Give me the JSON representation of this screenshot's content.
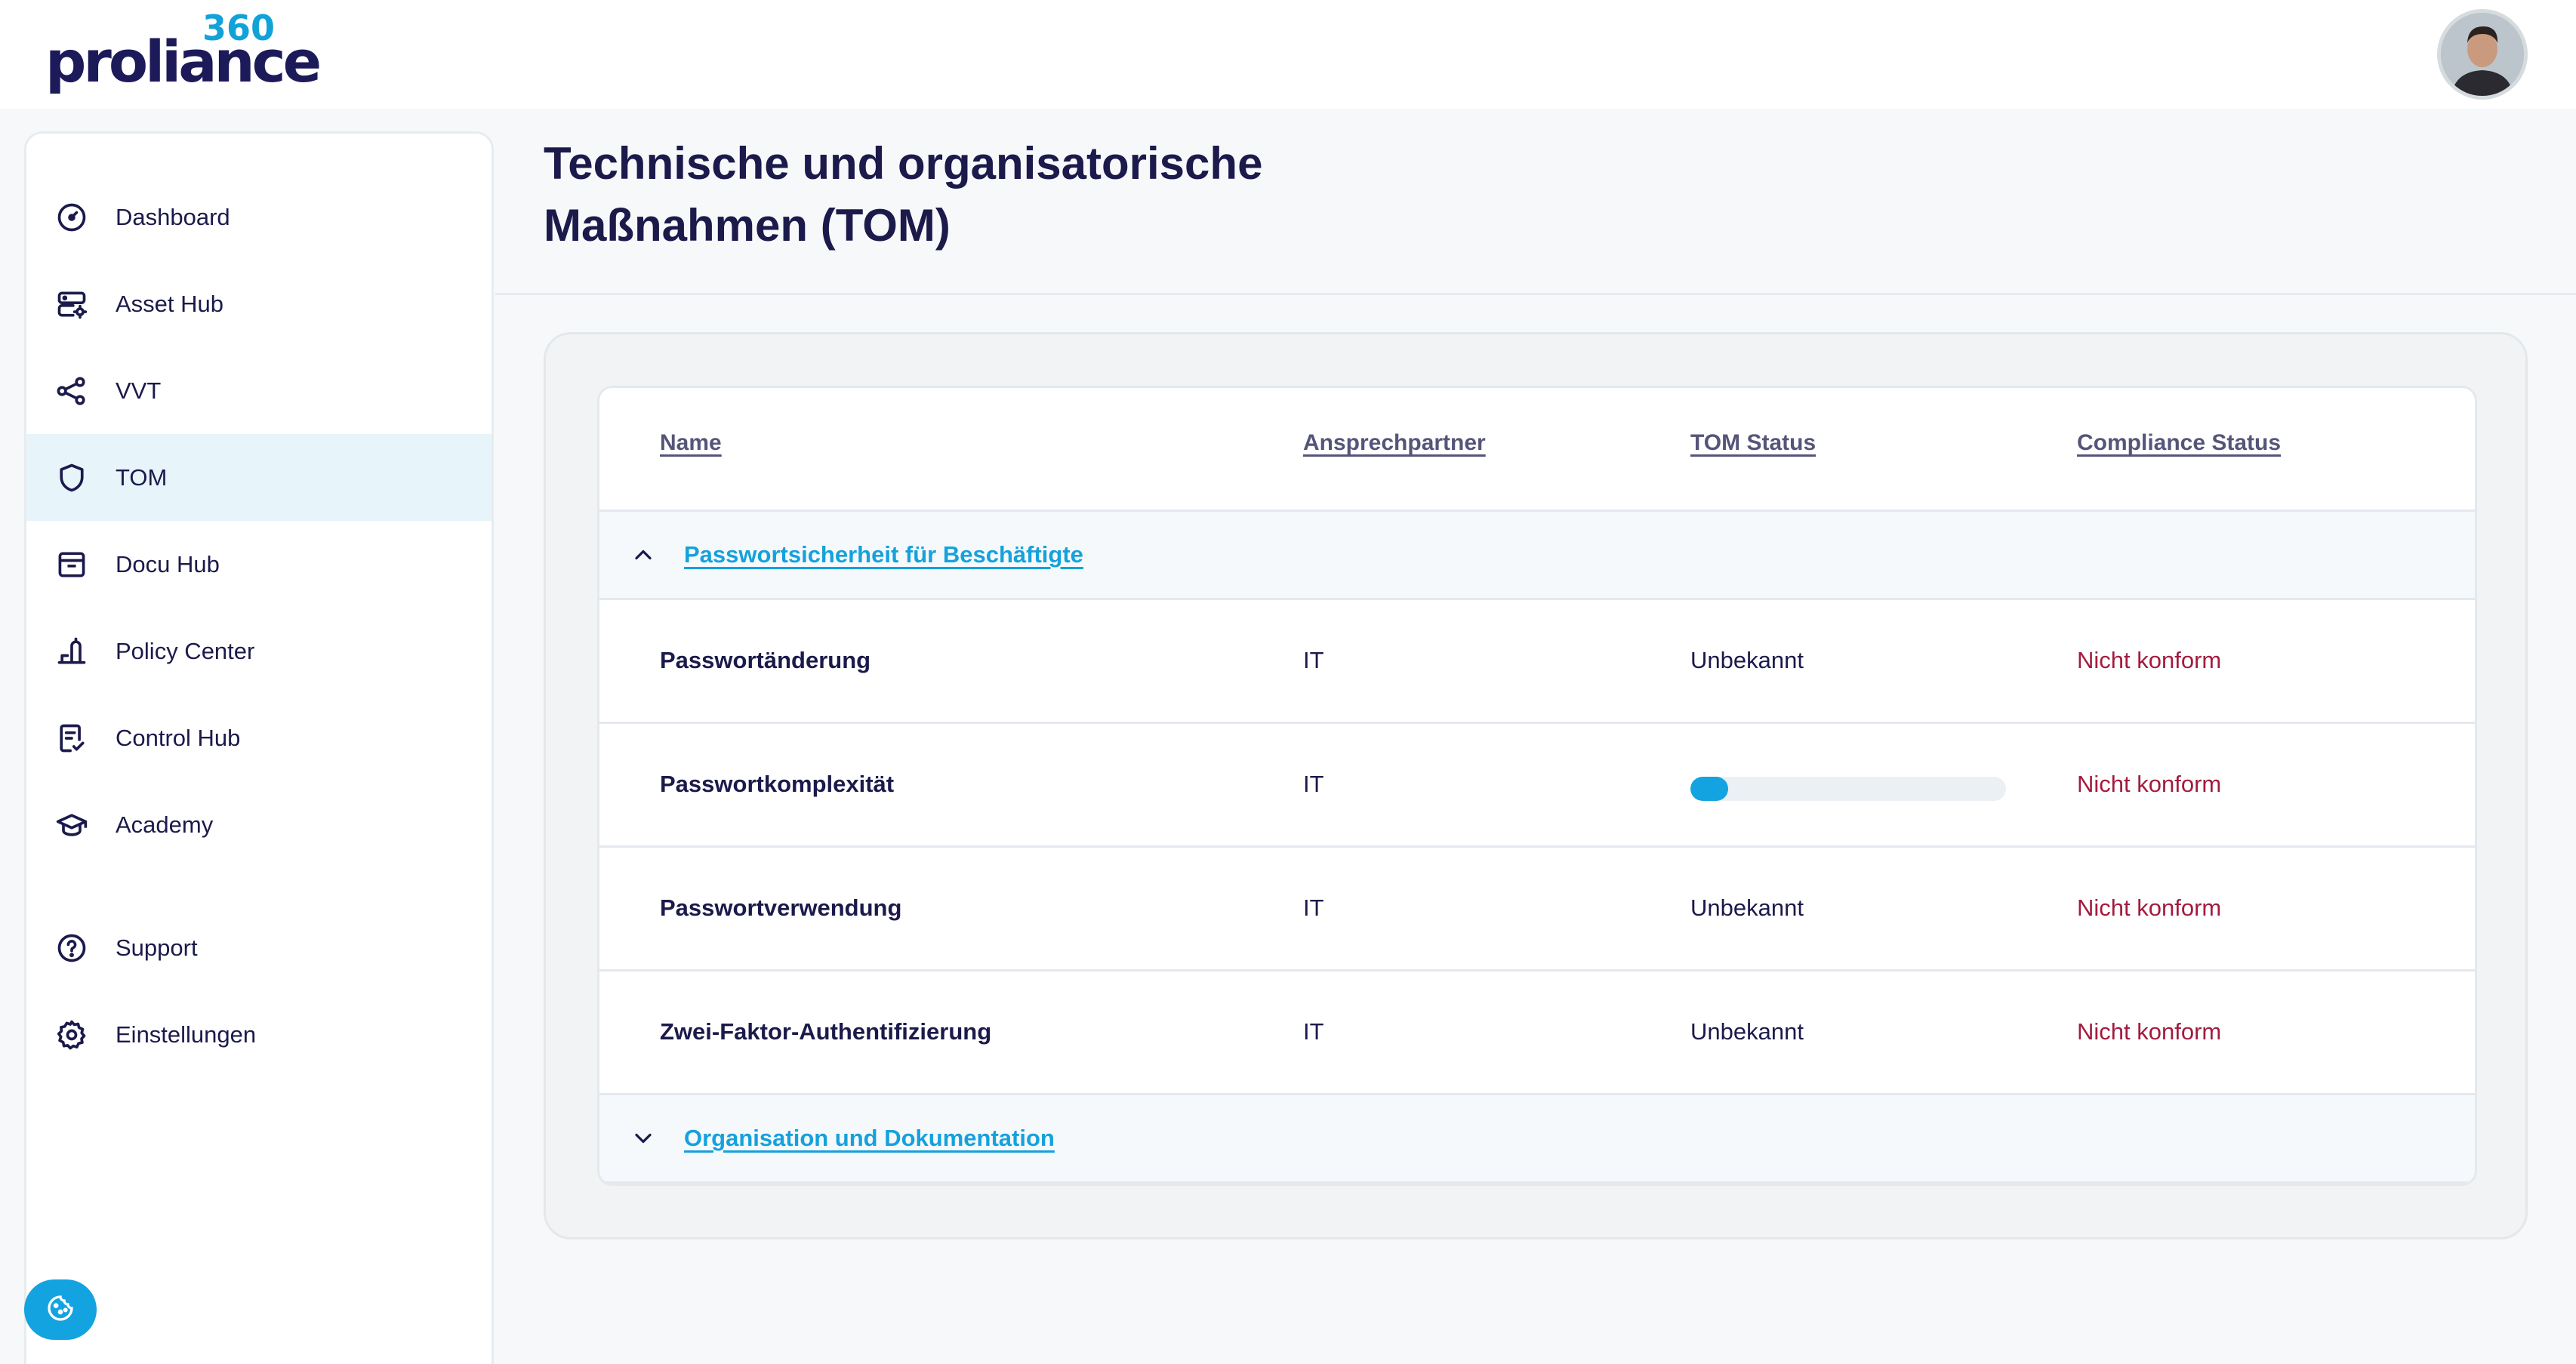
{
  "brand": {
    "name": "proliance",
    "suffix": "360"
  },
  "user": {
    "avatar": "user-avatar"
  },
  "sidebar": {
    "items": [
      {
        "label": "Dashboard",
        "icon": "gauge-icon"
      },
      {
        "label": "Asset Hub",
        "icon": "server-gear-icon"
      },
      {
        "label": "VVT",
        "icon": "share-nodes-icon"
      },
      {
        "label": "TOM",
        "icon": "shield-icon",
        "active": true
      },
      {
        "label": "Docu Hub",
        "icon": "archive-box-icon"
      },
      {
        "label": "Policy Center",
        "icon": "policy-icon"
      },
      {
        "label": "Control Hub",
        "icon": "checklist-icon"
      },
      {
        "label": "Academy",
        "icon": "graduation-cap-icon"
      }
    ],
    "bottom_items": [
      {
        "label": "Support",
        "icon": "question-circle-icon"
      },
      {
        "label": "Einstellungen",
        "icon": "gear-icon"
      }
    ],
    "cookie_button": {
      "icon": "cookie-icon"
    }
  },
  "page": {
    "title_line1": "Technische und organisatorische",
    "title_line2": "Maßnahmen (TOM)"
  },
  "table": {
    "columns": [
      "Name",
      "Ansprechpartner",
      "TOM Status",
      "Compliance Status"
    ],
    "groups": [
      {
        "title": "Passwortsicherheit für Beschäftigte",
        "expanded": true,
        "rows": [
          {
            "name": "Passwortänderung",
            "contact": "IT",
            "tom_status": "Unbekannt",
            "compliance": "Nicht konform"
          },
          {
            "name": "Passwortkomplexität",
            "contact": "IT",
            "tom_status_progress": 0.12,
            "compliance": "Nicht konform"
          },
          {
            "name": "Passwortverwendung",
            "contact": "IT",
            "tom_status": "Unbekannt",
            "compliance": "Nicht konform"
          },
          {
            "name": "Zwei-Faktor-Authentifizierung",
            "contact": "IT",
            "tom_status": "Unbekannt",
            "compliance": "Nicht konform"
          }
        ]
      },
      {
        "title": "Organisation und Dokumentation",
        "expanded": false
      }
    ]
  },
  "colors": {
    "primary": "#1b1a4b",
    "accent": "#13a3e0",
    "link": "#15a1dc",
    "noncompliant": "#a31b3f",
    "active_nav_bg": "#e7f4fa"
  }
}
